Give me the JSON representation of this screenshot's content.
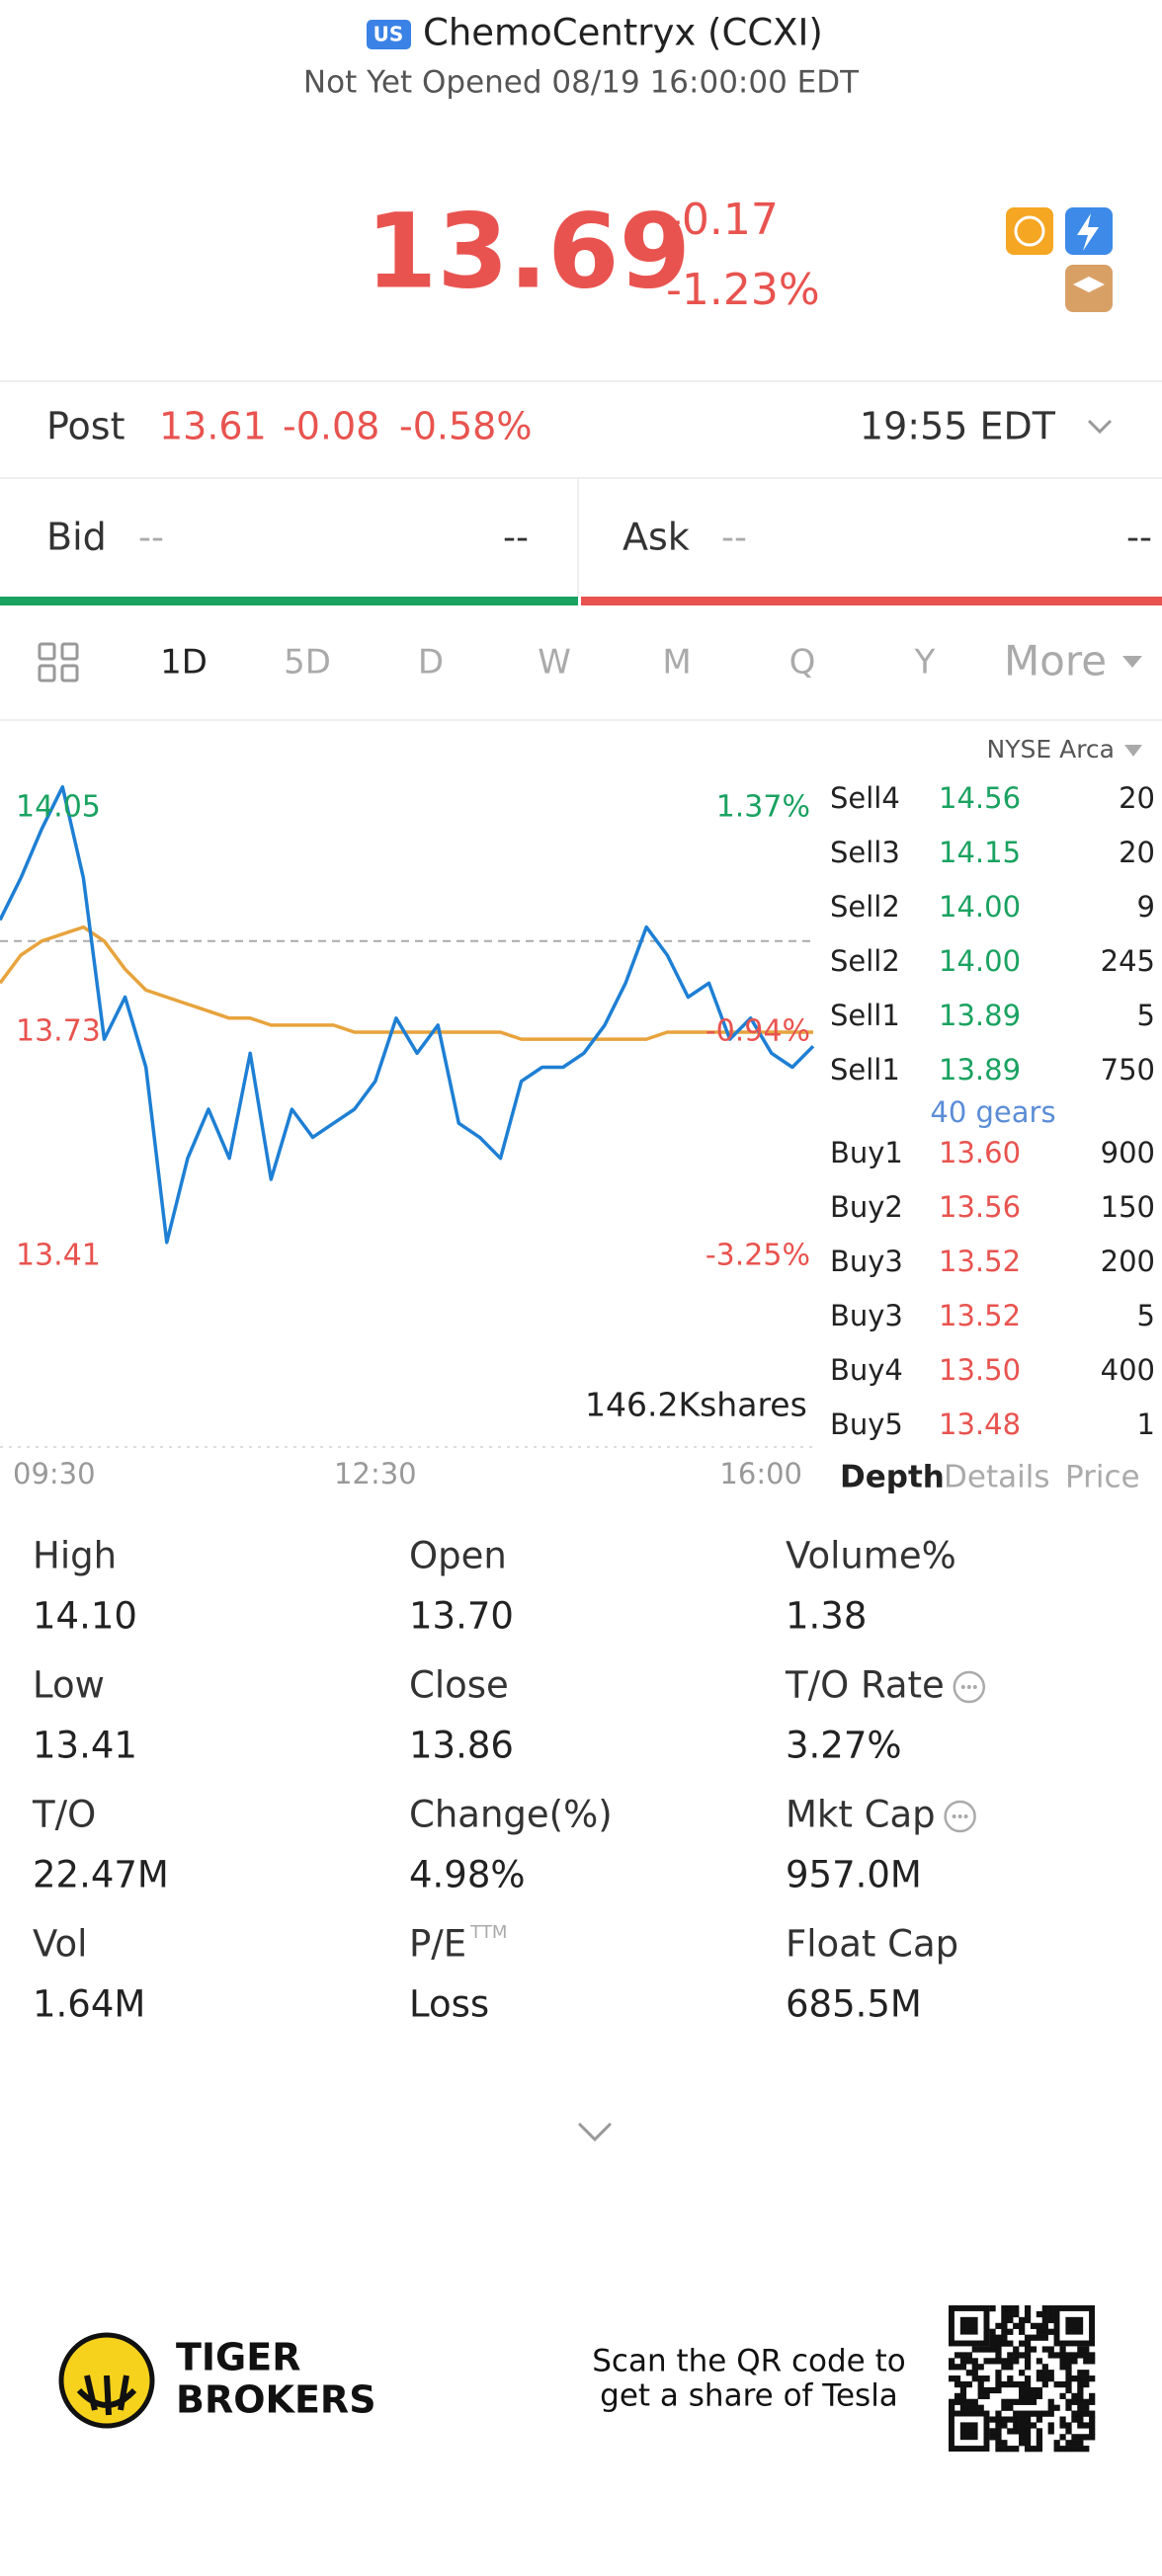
{
  "header": {
    "market_badge": "US",
    "title": "ChemoCentryx (CCXI)",
    "status": "Not Yet Opened 08/19 16:00:00 EDT"
  },
  "quote": {
    "price": "13.69",
    "change": "-0.17",
    "change_pct": "-1.23%"
  },
  "post_market": {
    "label": "Post",
    "price": "13.61",
    "change": "-0.08",
    "change_pct": "-0.58%",
    "time": "19:55 EDT"
  },
  "bid_ask": {
    "bid_label": "Bid",
    "bid_price": "--",
    "bid_size": "--",
    "ask_label": "Ask",
    "ask_price": "--",
    "ask_size": "--"
  },
  "tabs": {
    "items": [
      "1D",
      "5D",
      "D",
      "W",
      "M",
      "Q",
      "Y",
      "More"
    ],
    "active": 0
  },
  "chart_data": {
    "type": "line",
    "categories": [
      "09:30",
      null,
      null,
      null,
      null,
      null,
      null,
      null,
      null,
      null,
      null,
      null,
      null,
      null,
      null,
      null,
      null,
      null,
      "12:30",
      null,
      null,
      null,
      null,
      null,
      null,
      null,
      null,
      null,
      null,
      null,
      null,
      null,
      null,
      null,
      null,
      null,
      null,
      null,
      null,
      "16:00"
    ],
    "series": [
      {
        "color": "#1e7fd4",
        "values": [
          13.89,
          13.95,
          14.02,
          14.08,
          13.95,
          13.72,
          13.78,
          13.68,
          13.43,
          13.55,
          13.62,
          13.55,
          13.7,
          13.52,
          13.62,
          13.58,
          13.6,
          13.62,
          13.66,
          13.75,
          13.7,
          13.74,
          13.6,
          13.58,
          13.55,
          13.66,
          13.68,
          13.68,
          13.7,
          13.74,
          13.8,
          13.88,
          13.84,
          13.78,
          13.8,
          13.72,
          13.75,
          13.7,
          13.68,
          13.71
        ]
      },
      {
        "color": "#e8a33d",
        "values": [
          13.8,
          13.84,
          13.86,
          13.87,
          13.88,
          13.86,
          13.82,
          13.79,
          13.78,
          13.77,
          13.76,
          13.75,
          13.75,
          13.74,
          13.74,
          13.74,
          13.74,
          13.73,
          13.73,
          13.73,
          13.73,
          13.73,
          13.73,
          13.73,
          13.73,
          13.72,
          13.72,
          13.72,
          13.72,
          13.72,
          13.72,
          13.72,
          13.73,
          13.73,
          13.73,
          13.73,
          13.73,
          13.73,
          13.73,
          13.73
        ]
      }
    ],
    "ylim": [
      13.41,
      14.05
    ],
    "yticks": [
      14.05,
      13.73,
      13.41
    ],
    "y2lim": [
      -3.25,
      1.37
    ],
    "y2ticks": [
      {
        "value": 1.37,
        "label": "1.37%"
      },
      {
        "value": -0.94,
        "label": "-0.94%"
      },
      {
        "value": -3.25,
        "label": "-3.25%"
      }
    ],
    "reference_line": 13.86,
    "volume_label": "146.2Kshares"
  },
  "order_book": {
    "exchange": "NYSE Arca",
    "asks": [
      {
        "label": "Sell4",
        "price": "14.56",
        "size": "20"
      },
      {
        "label": "Sell3",
        "price": "14.15",
        "size": "20"
      },
      {
        "label": "Sell2",
        "price": "14.00",
        "size": "9"
      },
      {
        "label": "Sell2",
        "price": "14.00",
        "size": "245"
      },
      {
        "label": "Sell1",
        "price": "13.89",
        "size": "5"
      },
      {
        "label": "Sell1",
        "price": "13.89",
        "size": "750"
      }
    ],
    "gears": "40 gears",
    "bids": [
      {
        "label": "Buy1",
        "price": "13.60",
        "size": "900"
      },
      {
        "label": "Buy2",
        "price": "13.56",
        "size": "150"
      },
      {
        "label": "Buy3",
        "price": "13.52",
        "size": "200"
      },
      {
        "label": "Buy3",
        "price": "13.52",
        "size": "5"
      },
      {
        "label": "Buy4",
        "price": "13.50",
        "size": "400"
      },
      {
        "label": "Buy5",
        "price": "13.48",
        "size": "1"
      }
    ],
    "tabs": [
      "Depth",
      "Details",
      "Price"
    ]
  },
  "stats": [
    {
      "label": "High",
      "value": "14.10"
    },
    {
      "label": "Open",
      "value": "13.70"
    },
    {
      "label": "Volume%",
      "value": "1.38"
    },
    {
      "label": "Low",
      "value": "13.41"
    },
    {
      "label": "Close",
      "value": "13.86"
    },
    {
      "label": "T/O Rate",
      "value": "3.27%",
      "info": true
    },
    {
      "label": "T/O",
      "value": "22.47M"
    },
    {
      "label": "Change(%)",
      "value": "4.98%"
    },
    {
      "label": "Mkt Cap",
      "value": "957.0M",
      "info": true
    },
    {
      "label": "Vol",
      "value": "1.64M"
    },
    {
      "label": "P/E",
      "sup": "TTM",
      "value": "Loss"
    },
    {
      "label": "Float Cap",
      "value": "685.5M"
    }
  ],
  "footer": {
    "brand": [
      "TIGER",
      "BROKERS"
    ],
    "promo": [
      "Scan the QR code to",
      "get a share of Tesla"
    ]
  }
}
